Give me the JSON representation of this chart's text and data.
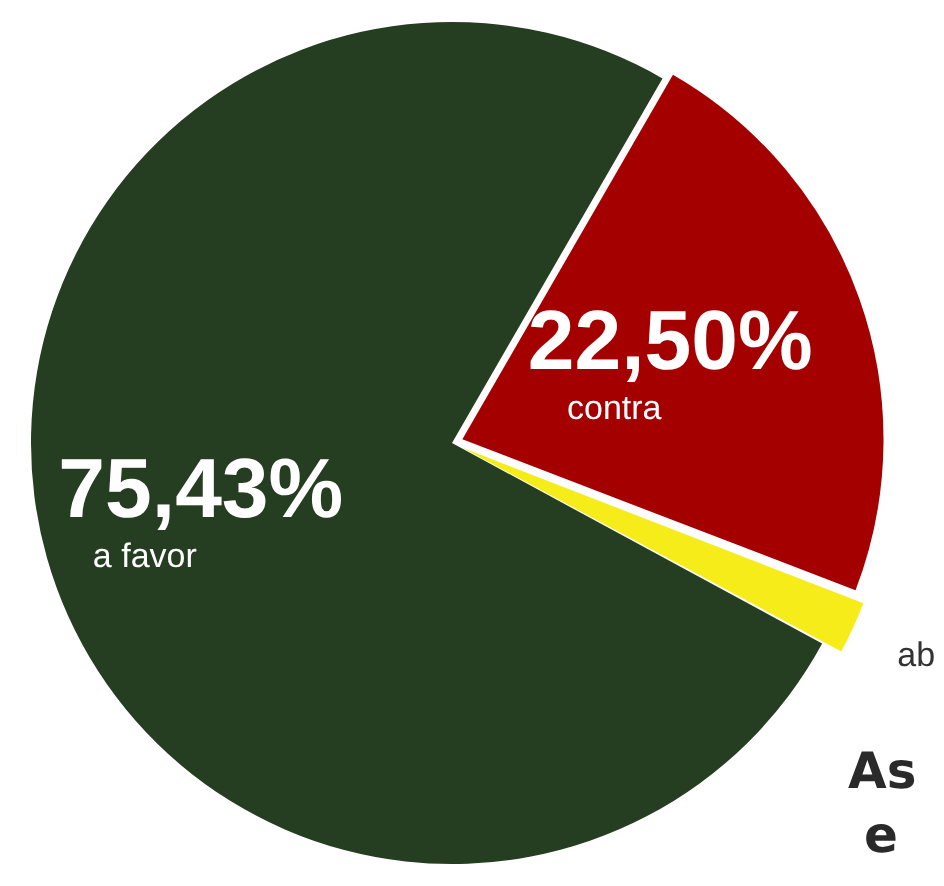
{
  "chart_data": {
    "type": "pie",
    "categories": [
      "contra",
      "ab",
      "a favor"
    ],
    "values": [
      22.5,
      2.07,
      75.43
    ],
    "colors": [
      "#a50000",
      "#f5ec1a",
      "#253d20"
    ],
    "value_labels": [
      "22,50%",
      null,
      "75,43%"
    ],
    "annotations": [
      "As",
      "e"
    ],
    "legend": false
  }
}
